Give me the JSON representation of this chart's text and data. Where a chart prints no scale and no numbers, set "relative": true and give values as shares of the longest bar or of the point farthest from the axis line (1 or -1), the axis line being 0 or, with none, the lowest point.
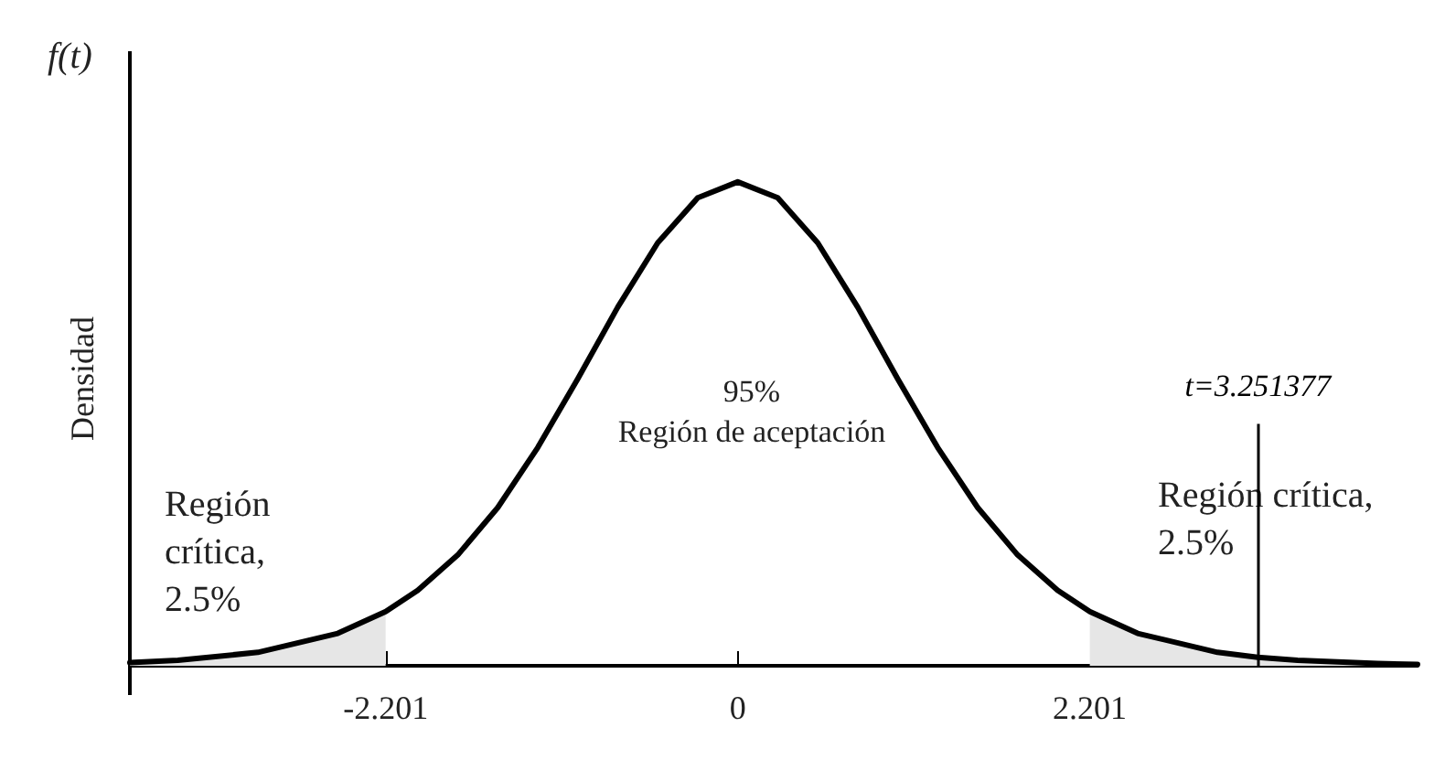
{
  "chart_data": {
    "type": "line",
    "ylabel": "Densidad",
    "relative": true,
    "xlim": [
      -3.8,
      4.25
    ],
    "xticks": [
      {
        "value": -2.201,
        "label": "-2.201"
      },
      {
        "value": 0,
        "label": "0"
      },
      {
        "value": 2.201,
        "label": "2.201"
      }
    ],
    "x": [
      -3.8,
      -3.5,
      -3,
      -2.5,
      -2.201,
      -2,
      -1.75,
      -1.5,
      -1.25,
      -1,
      -0.75,
      -0.5,
      -0.25,
      0,
      0.25,
      0.5,
      0.75,
      1,
      1.25,
      1.5,
      1.75,
      2,
      2.201,
      2.5,
      3,
      3.251,
      3.5,
      4,
      4.25
    ],
    "series": [
      {
        "color": "#000000",
        "values": [
          0.0065,
          0.0112,
          0.0277,
          0.067,
          0.112,
          0.156,
          0.229,
          0.327,
          0.451,
          0.593,
          0.741,
          0.874,
          0.967,
          1,
          0.967,
          0.874,
          0.741,
          0.593,
          0.451,
          0.327,
          0.229,
          0.156,
          0.112,
          0.067,
          0.0277,
          0.0176,
          0.0112,
          0.0046,
          0.0029
        ]
      },
      {
        "type": "area",
        "color": "#e6e6e6",
        "x": [
          -3.8,
          -3.5,
          -3,
          -2.5,
          -2.201
        ],
        "values": [
          0.0065,
          0.0112,
          0.0277,
          0.067,
          0.112
        ]
      },
      {
        "type": "area",
        "color": "#e6e6e6",
        "x": [
          2.201,
          2.5,
          3,
          3.251,
          3.5,
          4,
          4.25
        ],
        "values": [
          0.112,
          0.067,
          0.0277,
          0.0176,
          0.0112,
          0.0046,
          0.0029
        ]
      }
    ],
    "ref_lines": [
      {
        "axis": "x",
        "value": 3.251377,
        "label": "t=3.251377",
        "color": "#000000"
      }
    ],
    "annotations": [
      "f(t)",
      "95%\nRegión de aceptación",
      "Región\ncrítica,\n2.5%",
      "Región crítica,\n2.5%"
    ],
    "grid": false,
    "marker": "none",
    "line_style": "solid"
  }
}
